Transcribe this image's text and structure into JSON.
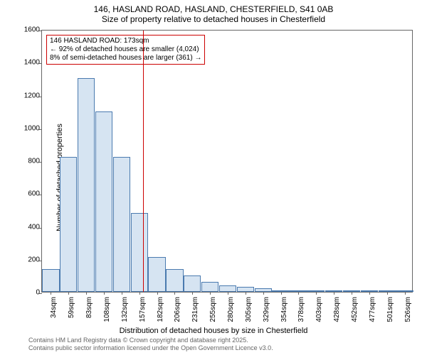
{
  "title_line1": "146, HASLAND ROAD, HASLAND, CHESTERFIELD, S41 0AB",
  "title_line2": "Size of property relative to detached houses in Chesterfield",
  "y_axis_label": "Number of detached properties",
  "x_axis_label": "Distribution of detached houses by size in Chesterfield",
  "chart": {
    "type": "histogram",
    "y_ticks": [
      0,
      200,
      400,
      600,
      800,
      1000,
      1200,
      1400,
      1600
    ],
    "y_max": 1600,
    "x_categories": [
      "34sqm",
      "59sqm",
      "83sqm",
      "108sqm",
      "132sqm",
      "157sqm",
      "182sqm",
      "206sqm",
      "231sqm",
      "255sqm",
      "280sqm",
      "305sqm",
      "329sqm",
      "354sqm",
      "378sqm",
      "403sqm",
      "428sqm",
      "452sqm",
      "477sqm",
      "501sqm",
      "526sqm"
    ],
    "bar_values": [
      140,
      820,
      1300,
      1100,
      820,
      480,
      210,
      140,
      100,
      60,
      40,
      30,
      20,
      10,
      5,
      5,
      3,
      2,
      2,
      1,
      1
    ],
    "bar_fill_color": "#d6e4f2",
    "bar_border_color": "#4a7aaf",
    "reference_line_x_index": 5.7,
    "reference_line_color": "#cc0000",
    "background_color": "#ffffff",
    "plot_border_color": "#666666"
  },
  "annotation": {
    "line1": "146 HASLAND ROAD: 173sqm",
    "line2": "← 92% of detached houses are smaller (4,024)",
    "line3": "8% of semi-detached houses are larger (361) →",
    "border_color": "#cc0000",
    "background_color": "#ffffff"
  },
  "footer": {
    "line1": "Contains HM Land Registry data © Crown copyright and database right 2025.",
    "line2": "Contains public sector information licensed under the Open Government Licence v3.0."
  }
}
